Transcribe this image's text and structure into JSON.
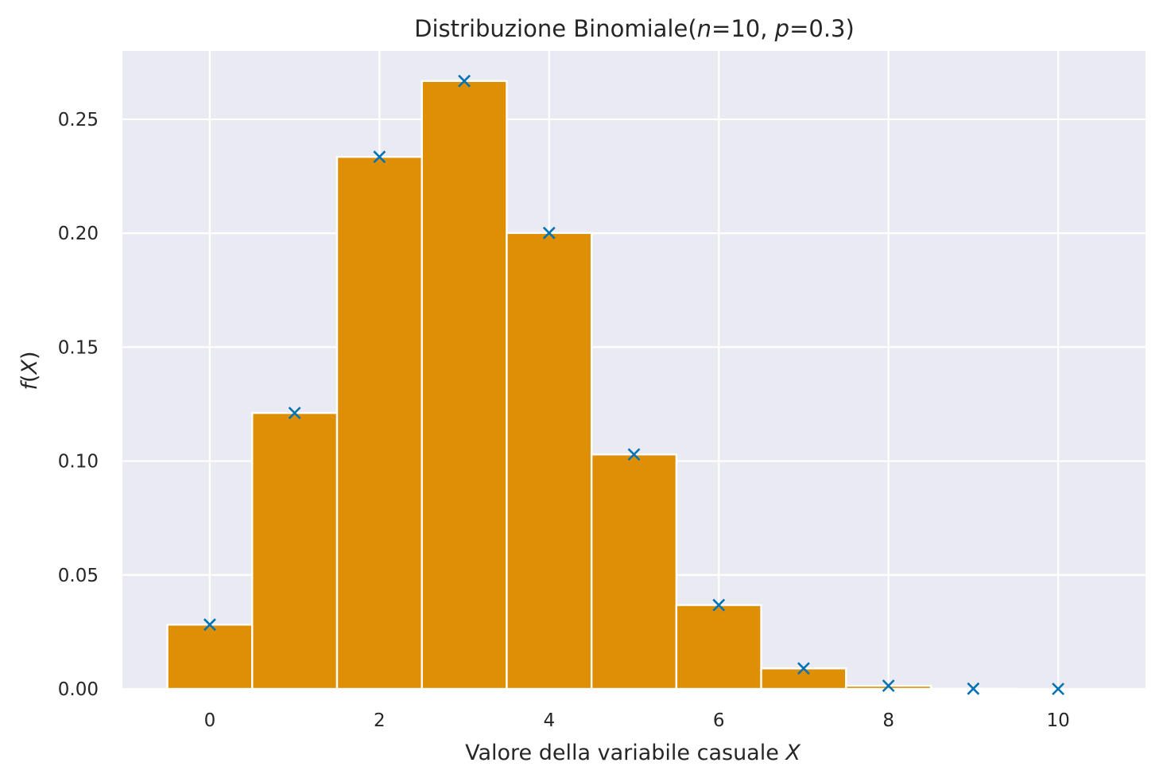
{
  "chart_data": {
    "type": "bar",
    "title_prefix": "Distribuzione Binomiale(",
    "title_n_symbol": "n",
    "title_n_value": "=10, ",
    "title_p_symbol": "p",
    "title_p_value": "=0.3)",
    "xlabel_prefix": "Valore della variabile casuale ",
    "xlabel_var": "X",
    "ylabel_f": "f",
    "ylabel_open": "(",
    "ylabel_var": "X",
    "ylabel_close": ")",
    "x": [
      0,
      1,
      2,
      3,
      4,
      5,
      6,
      7,
      8,
      9,
      10
    ],
    "values": [
      0.0282,
      0.1211,
      0.2335,
      0.2668,
      0.2001,
      0.1029,
      0.0368,
      0.009,
      0.0014,
      0.0001,
      0.0
    ],
    "marker_values": [
      0.0282,
      0.1211,
      0.2335,
      0.2668,
      0.2001,
      0.1029,
      0.0368,
      0.009,
      0.0014,
      0.0001,
      0.0
    ],
    "xlim": [
      -1.03,
      11.03
    ],
    "ylim": [
      0.0,
      0.28
    ],
    "xticks": [
      0,
      2,
      4,
      6,
      8,
      10
    ],
    "xtick_labels": [
      "0",
      "2",
      "4",
      "6",
      "8",
      "10"
    ],
    "yticks": [
      0.0,
      0.05,
      0.1,
      0.15,
      0.2,
      0.25
    ],
    "ytick_labels": [
      "0.00",
      "0.05",
      "0.10",
      "0.15",
      "0.20",
      "0.25"
    ],
    "grid": true,
    "colors": {
      "bar": "#de8f05",
      "bar_edge": "#ffffff",
      "marker": "#0173b2",
      "plot_bg": "#eaeaf2",
      "grid": "#ffffff",
      "text": "#262626"
    }
  }
}
